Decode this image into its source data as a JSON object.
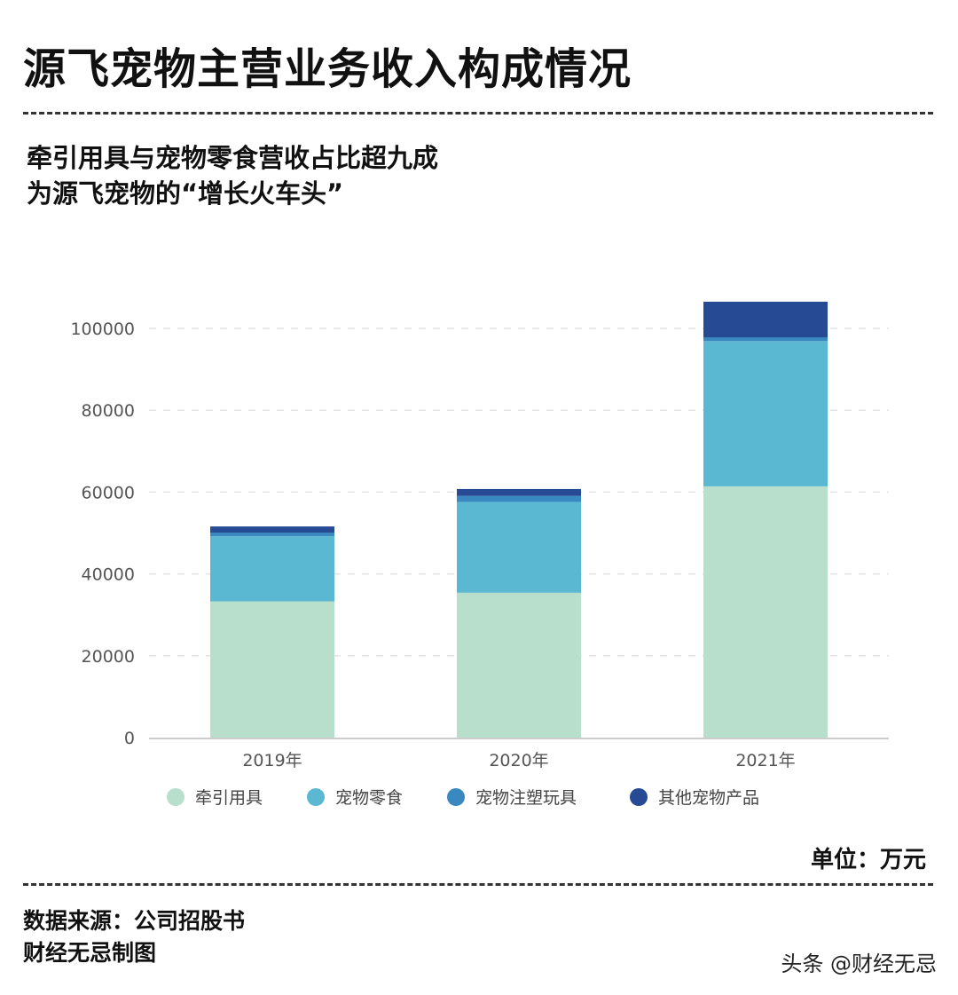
{
  "header": {
    "title": "源飞宠物主营业务收入构成情况",
    "subtitle_line1": "牵引用具与宠物零食营收占比超九成",
    "subtitle_line2": "为源飞宠物的“增长火车头”"
  },
  "footer": {
    "unit": "单位：万元",
    "source": "数据来源：公司招股书",
    "maker": "财经无忌制图",
    "watermark": "头条 @财经无忌"
  },
  "chart_data": {
    "type": "bar",
    "stacked": true,
    "categories": [
      "2019年",
      "2020年",
      "2021年"
    ],
    "ylim": [
      0,
      100000
    ],
    "yticks": [
      "0",
      "20000",
      "40000",
      "60000",
      "80000",
      "100000"
    ],
    "grid": true,
    "legend_position": "bottom",
    "series": [
      {
        "name": "牵引用具",
        "color": "#b7dfcb",
        "values": [
          33300,
          35400,
          61400
        ]
      },
      {
        "name": "宠物零食",
        "color": "#5bb8d2",
        "values": [
          15900,
          22200,
          35500
        ]
      },
      {
        "name": "宠物注塑玩具",
        "color": "#3a88c0",
        "values": [
          900,
          1450,
          930
        ]
      },
      {
        "name": "其他宠物产品",
        "color": "#264a94",
        "values": [
          1500,
          1700,
          8700
        ]
      }
    ]
  }
}
